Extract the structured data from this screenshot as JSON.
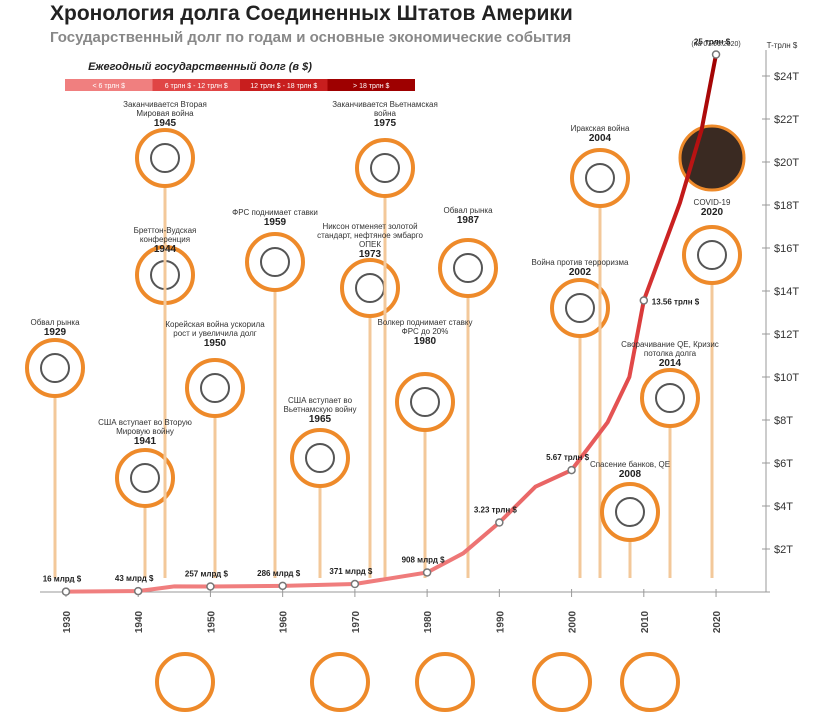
{
  "chart_data": {
    "type": "line",
    "title": "Хронология долга Соединенных Штатов Америки",
    "subtitle": "Государственный долг по годам и основные экономические события",
    "y_label": "T-трлн $",
    "legend": {
      "title": "Ежегодный государственный долг (в $)",
      "items": [
        {
          "label": "< 6 трлн $",
          "color": "#f07f7f"
        },
        {
          "label": "6 трлн $ - 12 трлн $",
          "color": "#e04545"
        },
        {
          "label": "12 трлн $ - 18 трлн $",
          "color": "#c81e1e"
        },
        {
          "label": "> 18 трлн $",
          "color": "#9e0000"
        }
      ]
    },
    "note": "(на 07.06.2020)",
    "x": [
      1930,
      1940,
      1945,
      1950,
      1960,
      1970,
      1980,
      1985,
      1990,
      1995,
      2000,
      2005,
      2008,
      2010,
      2015,
      2018,
      2020
    ],
    "series": [
      {
        "name": "Государственный долг",
        "values": [
          0.016,
          0.043,
          0.26,
          0.257,
          0.286,
          0.371,
          0.908,
          1.8,
          3.23,
          4.9,
          5.67,
          7.9,
          10,
          13.56,
          18.1,
          21.5,
          25
        ],
        "value_labels": [
          "16 млрд $",
          "43 млрд $",
          null,
          "257 млрд $",
          "286 млрд $",
          "371 млрд $",
          "908 млрд $",
          null,
          "3.23 трлн $",
          null,
          "5.67 трлн $",
          null,
          null,
          "13.56 трлн $",
          null,
          null,
          "25 трлн $"
        ]
      }
    ],
    "xlim": [
      1927,
      2027
    ],
    "xticks": [
      1930,
      1940,
      1950,
      1960,
      1970,
      1980,
      1990,
      2000,
      2010,
      2020
    ],
    "ylim": [
      0,
      25
    ],
    "yticks": [
      {
        "value": 2,
        "label": "$2T"
      },
      {
        "value": 4,
        "label": "$4T"
      },
      {
        "value": 6,
        "label": "$6T"
      },
      {
        "value": 8,
        "label": "$8T"
      },
      {
        "value": 10,
        "label": "$10T"
      },
      {
        "value": 12,
        "label": "$12T"
      },
      {
        "value": 14,
        "label": "$14T"
      },
      {
        "value": 16,
        "label": "$16T"
      },
      {
        "value": 18,
        "label": "$18T"
      },
      {
        "value": 20,
        "label": "$20T"
      },
      {
        "value": 22,
        "label": "$22T"
      },
      {
        "value": 24,
        "label": "$24T"
      }
    ],
    "annotations": [
      {
        "year": "1929",
        "text": "Обвал рынка"
      },
      {
        "year": "1941",
        "text": "США вступает во Вторую Мировую войну"
      },
      {
        "year": "1944",
        "text": "Бреттон-Вудская конференция"
      },
      {
        "year": "1945",
        "text": "Заканчивается Вторая Мировая война"
      },
      {
        "year": "1950",
        "text": "Корейская война ускорила рост и увеличила долг"
      },
      {
        "year": "1959",
        "text": "ФРС поднимает ставки"
      },
      {
        "year": "1965",
        "text": "США вступает во Вьетнамскую войну"
      },
      {
        "year": "1973",
        "text": "Никсон отменяет золотой стандарт, нефтяное эмбарго ОПЕК"
      },
      {
        "year": "1975",
        "text": "Заканчивается Вьетнамская война"
      },
      {
        "year": "1980",
        "text": "Волкер поднимает ставку ФРС до 20%"
      },
      {
        "year": "1987",
        "text": "Обвал рынка"
      },
      {
        "year": "2002",
        "text": "Война против терроризма"
      },
      {
        "year": "2004",
        "text": "Иракская война"
      },
      {
        "year": "2008",
        "text": "Спасение банков, QE"
      },
      {
        "year": "2014",
        "text": "Сворачивание QE, Кризис потолка долга"
      },
      {
        "year": "2020",
        "text": "COVID-19"
      }
    ]
  }
}
